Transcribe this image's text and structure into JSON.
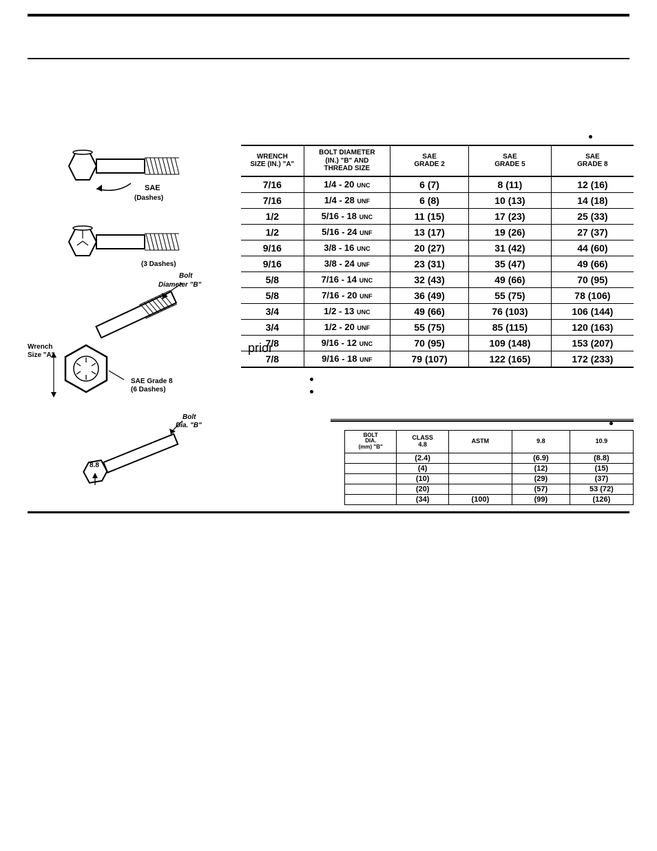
{
  "stray_text": "prior",
  "table1": {
    "columns": [
      "WRENCH\nSIZE (IN.) \"A\"",
      "BOLT DIAMETER\n(IN.) \"B\" AND\nTHREAD SIZE",
      "SAE\nGRADE 2",
      "SAE\nGRADE 5",
      "SAE\nGRADE 8"
    ],
    "header_fontsize": 10,
    "body_fontsize": 14,
    "rows": [
      {
        "wrench": "7/16",
        "thread_num": "1/4 - 20",
        "thread_suf": "UNC",
        "g2": "6  (7)",
        "g5": "8  (11)",
        "g8": "12  (16)"
      },
      {
        "wrench": "7/16",
        "thread_num": "1/4 - 28",
        "thread_suf": "UNF",
        "g2": "6  (8)",
        "g5": "10  (13)",
        "g8": "14  (18)"
      },
      {
        "wrench": "1/2",
        "thread_num": "5/16 - 18",
        "thread_suf": "UNC",
        "g2": "11  (15)",
        "g5": "17  (23)",
        "g8": "25  (33)"
      },
      {
        "wrench": "1/2",
        "thread_num": "5/16 - 24",
        "thread_suf": "UNF",
        "g2": "13  (17)",
        "g5": "19  (26)",
        "g8": "27  (37)"
      },
      {
        "wrench": "9/16",
        "thread_num": "3/8 - 16",
        "thread_suf": "UNC",
        "g2": "20  (27)",
        "g5": "31  (42)",
        "g8": "44  (60)"
      },
      {
        "wrench": "9/16",
        "thread_num": "3/8 - 24",
        "thread_suf": "UNF",
        "g2": "23  (31)",
        "g5": "35  (47)",
        "g8": "49  (66)"
      },
      {
        "wrench": "5/8",
        "thread_num": "7/16 - 14",
        "thread_suf": "UNC",
        "g2": "32  (43)",
        "g5": "49  (66)",
        "g8": "70  (95)"
      },
      {
        "wrench": "5/8",
        "thread_num": "7/16 - 20",
        "thread_suf": "UNF",
        "g2": "36  (49)",
        "g5": "55  (75)",
        "g8": "78  (106)"
      },
      {
        "wrench": "3/4",
        "thread_num": "1/2 - 13",
        "thread_suf": "UNC",
        "g2": "49  (66)",
        "g5": "76  (103)",
        "g8": "106  (144)"
      },
      {
        "wrench": "3/4",
        "thread_num": "1/2 - 20",
        "thread_suf": "UNF",
        "g2": "55  (75)",
        "g5": "85  (115)",
        "g8": "120  (163)"
      },
      {
        "wrench": "7/8",
        "thread_num": "9/16 - 12",
        "thread_suf": "UNC",
        "g2": "70  (95)",
        "g5": "109  (148)",
        "g8": "153  (207)"
      },
      {
        "wrench": "7/8",
        "thread_num": "9/16 - 18",
        "thread_suf": "UNF",
        "g2": "79  (107)",
        "g5": "122  (165)",
        "g8": "172  (233)"
      }
    ]
  },
  "table2": {
    "columns": [
      "BOLT\nDIA.\n(mm) \"B\"",
      "CLASS\n4.8",
      "ASTM",
      "9.8",
      "10.9"
    ],
    "rows": [
      {
        "dia": "",
        "c48": "(2.4)",
        "astm": "",
        "c98": "(6.9)",
        "c109": "(8.8)"
      },
      {
        "dia": "",
        "c48": "(4)",
        "astm": "",
        "c98": "(12)",
        "c109": "(15)"
      },
      {
        "dia": "",
        "c48": "(10)",
        "astm": "",
        "c98": "(29)",
        "c109": "(37)"
      },
      {
        "dia": "",
        "c48": "(20)",
        "astm": "",
        "c98": "(57)",
        "c109": "53  (72)"
      },
      {
        "dia": "",
        "c48": "(34)",
        "astm": "(100)",
        "c98": "(99)",
        "c109": "(126)"
      }
    ]
  },
  "diagram": {
    "sae_label": "SAE",
    "sae_sub": "(Dashes)",
    "dash3": "(3 Dashes)",
    "bolt_dia_b": "Bolt\nDiameter \"B\"",
    "wrench_a": "Wrench\nSize \"A\"",
    "grade8": "SAE Grade 8\n(6 Dashes)",
    "bolt_dia_b2": "Bolt\nDia. \"B\"",
    "metric_head": "8.8"
  },
  "colors": {
    "line": "#000000",
    "bg": "#ffffff"
  }
}
